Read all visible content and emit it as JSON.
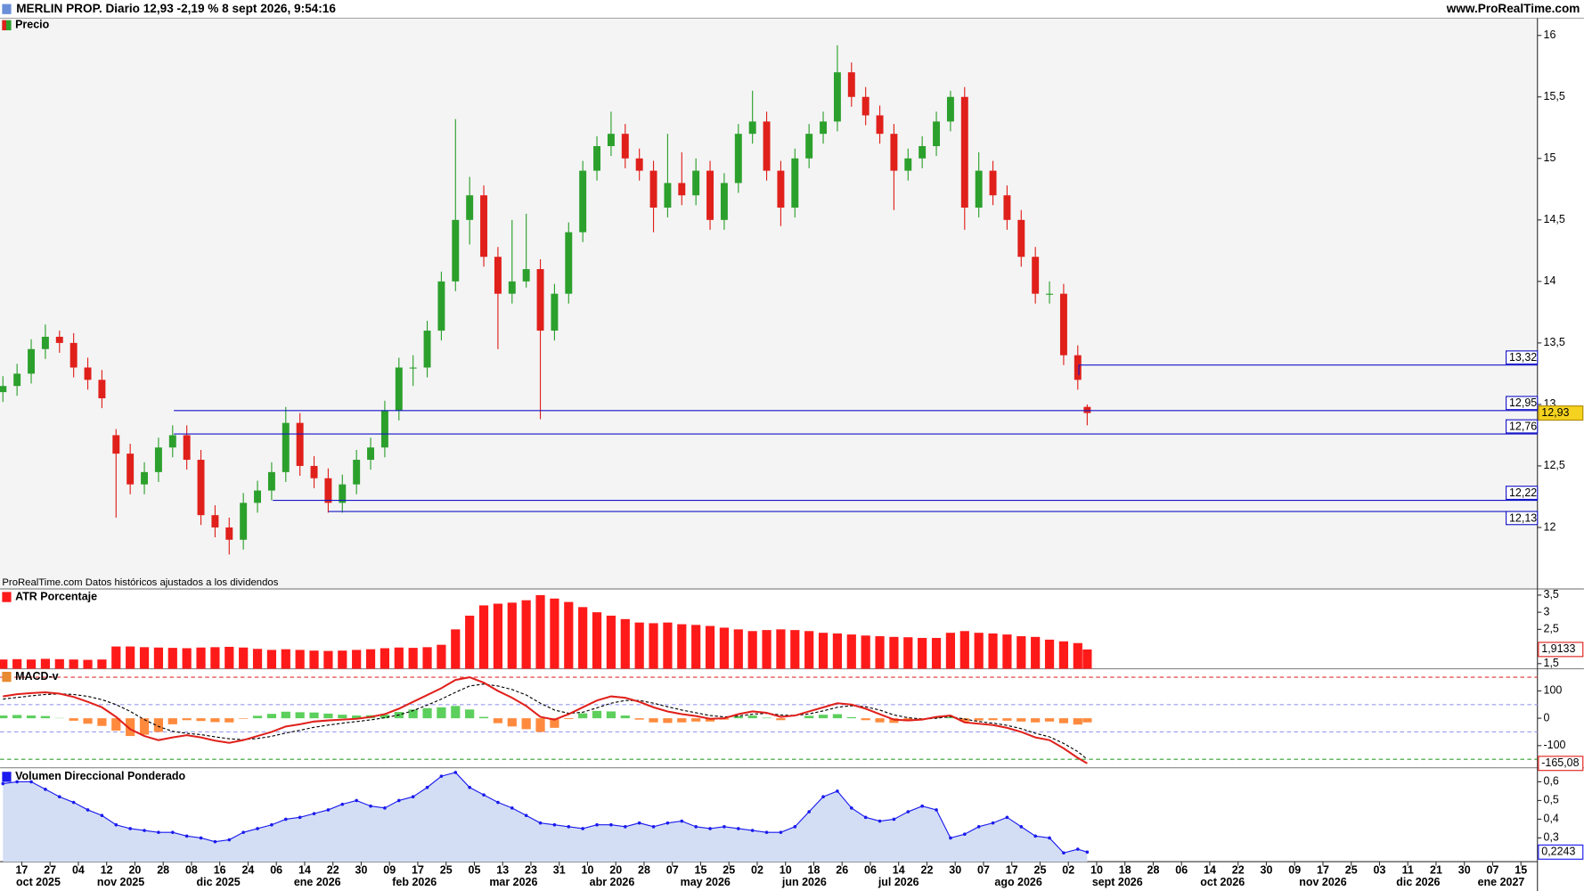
{
  "header": {
    "title": "MERLIN PROP. Diario 12,93 -2,19 % 8 sept 2026, 9:54:16",
    "site": "www.ProRealTime.com"
  },
  "chart_data": [
    {
      "type": "candlestick",
      "title": "Precio",
      "note": "ProRealTime.com Datos históricos ajustados a los dividendos",
      "up_color": "#2ca02c",
      "down_color": "#e0201b",
      "x": [
        0,
        3,
        6,
        9,
        12,
        15,
        18,
        21,
        24,
        27,
        30,
        33,
        36,
        39,
        42,
        45,
        48,
        51,
        54,
        57,
        60,
        63,
        66,
        69,
        72,
        75,
        78,
        81,
        84,
        87,
        90,
        93,
        96,
        99,
        102,
        105,
        108,
        111,
        114,
        117,
        120,
        123,
        126,
        129,
        132,
        135,
        138,
        141,
        144,
        147,
        150,
        153,
        156,
        159,
        162,
        165,
        168,
        171,
        174,
        177,
        180,
        183,
        186,
        189,
        192,
        195,
        198,
        201,
        204,
        207,
        210,
        213,
        216,
        219,
        222,
        225,
        228,
        230
      ],
      "open": [
        13.1,
        13.15,
        13.25,
        13.45,
        13.55,
        13.5,
        13.3,
        13.2,
        12.75,
        12.6,
        12.35,
        12.45,
        12.65,
        12.75,
        12.55,
        12.1,
        12.0,
        11.9,
        12.2,
        12.3,
        12.45,
        12.85,
        12.5,
        12.4,
        12.2,
        12.35,
        12.55,
        12.65,
        12.95,
        13.3,
        13.3,
        13.6,
        14.0,
        14.5,
        14.7,
        14.2,
        13.9,
        14.0,
        14.1,
        13.6,
        13.9,
        14.4,
        14.9,
        15.1,
        15.2,
        15.0,
        14.9,
        14.6,
        14.8,
        14.7,
        14.9,
        14.5,
        14.8,
        15.2,
        15.3,
        14.9,
        14.6,
        15.0,
        15.2,
        15.3,
        15.7,
        15.5,
        15.35,
        15.2,
        14.9,
        15.0,
        15.1,
        15.3,
        15.5,
        14.6,
        14.9,
        14.7,
        14.5,
        14.2,
        13.9,
        13.9,
        13.4,
        12.98
      ],
      "high": [
        13.23,
        13.33,
        13.53,
        13.65,
        13.6,
        13.58,
        13.38,
        13.28,
        12.8,
        12.68,
        12.53,
        12.73,
        12.83,
        12.83,
        12.63,
        12.18,
        12.08,
        12.28,
        12.38,
        12.53,
        12.98,
        12.93,
        12.58,
        12.48,
        12.43,
        12.63,
        12.73,
        13.03,
        13.38,
        13.4,
        13.68,
        14.08,
        15.32,
        14.85,
        14.78,
        14.28,
        14.5,
        14.55,
        14.18,
        13.98,
        14.48,
        14.98,
        15.18,
        15.38,
        15.28,
        15.08,
        14.98,
        15.2,
        15.05,
        15.0,
        14.98,
        14.88,
        15.28,
        15.55,
        15.38,
        14.98,
        15.08,
        15.28,
        15.38,
        15.92,
        15.78,
        15.58,
        15.43,
        15.28,
        15.08,
        15.18,
        15.38,
        15.55,
        15.58,
        15.05,
        14.98,
        14.78,
        14.58,
        14.28,
        14.0,
        13.98,
        13.48,
        13.0
      ],
      "low": [
        13.02,
        13.07,
        13.17,
        13.37,
        13.42,
        13.22,
        13.12,
        12.97,
        12.08,
        12.27,
        12.27,
        12.37,
        12.57,
        12.47,
        12.02,
        11.92,
        11.78,
        11.82,
        12.12,
        12.22,
        12.37,
        12.42,
        12.32,
        12.12,
        12.12,
        12.27,
        12.47,
        12.57,
        12.87,
        13.15,
        13.22,
        13.52,
        13.92,
        14.3,
        14.12,
        13.45,
        13.82,
        13.95,
        12.88,
        13.52,
        13.82,
        14.32,
        14.82,
        15.02,
        14.92,
        14.82,
        14.4,
        14.52,
        14.62,
        14.62,
        14.42,
        14.42,
        14.72,
        15.12,
        14.82,
        14.45,
        14.52,
        14.92,
        15.12,
        15.22,
        15.42,
        15.27,
        15.12,
        14.58,
        14.82,
        14.92,
        15.02,
        15.22,
        14.42,
        14.52,
        14.62,
        14.42,
        14.12,
        13.82,
        13.82,
        13.32,
        13.12,
        12.83
      ],
      "close": [
        13.15,
        13.25,
        13.45,
        13.55,
        13.5,
        13.3,
        13.2,
        13.05,
        12.6,
        12.35,
        12.45,
        12.65,
        12.75,
        12.55,
        12.1,
        12.0,
        11.9,
        12.2,
        12.3,
        12.45,
        12.85,
        12.5,
        12.4,
        12.2,
        12.35,
        12.55,
        12.65,
        12.95,
        13.3,
        13.3,
        13.6,
        14.0,
        14.5,
        14.7,
        14.2,
        13.9,
        14.0,
        14.1,
        13.6,
        13.9,
        14.4,
        14.9,
        15.1,
        15.2,
        15.0,
        14.9,
        14.6,
        14.8,
        14.7,
        14.9,
        14.5,
        14.8,
        15.2,
        15.3,
        14.9,
        14.6,
        15.0,
        15.2,
        15.3,
        15.7,
        15.5,
        15.35,
        15.2,
        14.9,
        15.0,
        15.1,
        15.3,
        15.5,
        14.6,
        14.9,
        14.7,
        14.5,
        14.2,
        13.9,
        13.9,
        13.4,
        13.2,
        12.93
      ],
      "ylim": [
        11.5,
        16.14
      ],
      "yticks": [
        12,
        {
          "value": 12.5,
          "label": "12,5"
        },
        13,
        {
          "value": 13.5,
          "label": "13,5"
        },
        14,
        {
          "value": 14.5,
          "label": "14,5"
        },
        15,
        {
          "value": 15.5,
          "label": "15,5"
        },
        16
      ],
      "levels": [
        {
          "value": 13.32,
          "label": "13,32"
        },
        {
          "value": 12.95,
          "label": "12,95"
        },
        {
          "value": 12.76,
          "label": "12,76"
        },
        {
          "value": 12.22,
          "label": "12,22"
        },
        {
          "value": 12.13,
          "label": "12,13"
        }
      ],
      "level_color": "#1515c8",
      "current": {
        "value": 12.93,
        "label": "12,93"
      },
      "current_fill": "#f5d21f",
      "current_border": "#b08a00"
    },
    {
      "type": "bar",
      "title": "ATR Porcentaje",
      "color": "#ff1a1a",
      "values": [
        1.62,
        1.63,
        1.62,
        1.64,
        1.63,
        1.62,
        1.61,
        1.62,
        2.0,
        2.0,
        1.98,
        1.97,
        1.96,
        1.95,
        1.97,
        1.98,
        1.99,
        1.97,
        1.93,
        1.9,
        1.92,
        1.9,
        1.88,
        1.87,
        1.88,
        1.9,
        1.92,
        1.95,
        1.97,
        1.96,
        1.98,
        2.05,
        2.5,
        2.9,
        3.2,
        3.25,
        3.28,
        3.35,
        3.5,
        3.4,
        3.3,
        3.15,
        3.0,
        2.9,
        2.8,
        2.7,
        2.68,
        2.7,
        2.65,
        2.63,
        2.6,
        2.55,
        2.5,
        2.45,
        2.48,
        2.5,
        2.48,
        2.45,
        2.4,
        2.38,
        2.35,
        2.32,
        2.3,
        2.28,
        2.27,
        2.25,
        2.25,
        2.4,
        2.45,
        2.4,
        2.38,
        2.35,
        2.3,
        2.28,
        2.2,
        2.15,
        2.1,
        1.9133
      ],
      "ylim": [
        1.35,
        3.68
      ],
      "yticks": [
        {
          "value": 1.5,
          "label": "1,5"
        },
        {
          "value": 2.5,
          "label": "2,5"
        },
        3,
        {
          "value": 3.5,
          "label": "3,5"
        }
      ],
      "current": {
        "value": 1.9133,
        "label": "1,9133"
      },
      "current_fill": "#ffffff",
      "current_border": "#e0201b"
    },
    {
      "type": "macd",
      "title": "MACD-v",
      "series": [
        {
          "name": "MACD-v",
          "color": "#e0201b",
          "values": [
            80,
            88,
            92,
            95,
            90,
            78,
            60,
            40,
            5,
            -40,
            -65,
            -80,
            -70,
            -62,
            -70,
            -82,
            -90,
            -80,
            -65,
            -50,
            -30,
            -22,
            -12,
            -8,
            -5,
            -2,
            5,
            15,
            35,
            60,
            85,
            110,
            140,
            150,
            130,
            100,
            75,
            45,
            5,
            -5,
            15,
            40,
            65,
            80,
            75,
            60,
            40,
            25,
            15,
            8,
            -2,
            0,
            15,
            25,
            20,
            5,
            10,
            25,
            40,
            55,
            50,
            35,
            15,
            -5,
            -8,
            -5,
            5,
            10,
            -15,
            -20,
            -25,
            -35,
            -50,
            -70,
            -80,
            -110,
            -145,
            -165.08
          ]
        },
        {
          "name": "Señal",
          "color": "#000000",
          "values": [
            70,
            76,
            82,
            87,
            89,
            87,
            80,
            68,
            50,
            25,
            -5,
            -30,
            -48,
            -55,
            -60,
            -68,
            -75,
            -78,
            -74,
            -66,
            -54,
            -44,
            -33,
            -25,
            -18,
            -12,
            -6,
            2,
            12,
            28,
            48,
            70,
            95,
            118,
            125,
            118,
            105,
            85,
            55,
            30,
            18,
            22,
            38,
            55,
            65,
            65,
            55,
            42,
            30,
            20,
            10,
            5,
            8,
            15,
            18,
            12,
            10,
            16,
            27,
            40,
            46,
            42,
            30,
            12,
            2,
            -3,
            0,
            6,
            -3,
            -12,
            -18,
            -26,
            -38,
            -55,
            -68,
            -92,
            -122,
            -150
          ]
        }
      ],
      "histogram": [
        10,
        12,
        10,
        8,
        1,
        -9,
        -20,
        -28,
        -45,
        -65,
        -60,
        -50,
        -22,
        -7,
        -10,
        -14,
        -15,
        -2,
        9,
        16,
        24,
        22,
        21,
        17,
        13,
        10,
        11,
        13,
        23,
        32,
        37,
        40,
        45,
        32,
        5,
        -18,
        -30,
        -40,
        -50,
        -35,
        -3,
        18,
        27,
        25,
        10,
        -5,
        -15,
        -17,
        -15,
        -12,
        -12,
        -5,
        7,
        10,
        2,
        -7,
        0,
        9,
        13,
        15,
        4,
        -7,
        -15,
        -17,
        -10,
        -2,
        5,
        4,
        -12,
        -8,
        -7,
        -9,
        -12,
        -15,
        -12,
        -18,
        -23,
        -15.08
      ],
      "hist_up_color": "#5ccf5c",
      "hist_down_color": "#ff8a3d",
      "ref_lines": [
        {
          "value": 150,
          "color": "#e03030"
        },
        {
          "value": 50,
          "color": "#9a9af0"
        },
        {
          "value": -50,
          "color": "#9a9af0"
        },
        {
          "value": -150,
          "color": "#30a030"
        }
      ],
      "ylim": [
        -181,
        181
      ],
      "yticks": [
        100,
        0,
        -100
      ],
      "current": {
        "value": -165.08,
        "label": "-165,08"
      },
      "current_fill": "#ffffff",
      "current_border": "#e0201b"
    },
    {
      "type": "area",
      "title": "Volumen Direccional Ponderado",
      "color": "#1a1aee",
      "fill": "#d3def5",
      "values": [
        0.59,
        0.6,
        0.6,
        0.56,
        0.52,
        0.49,
        0.45,
        0.42,
        0.37,
        0.35,
        0.34,
        0.33,
        0.33,
        0.31,
        0.3,
        0.28,
        0.29,
        0.33,
        0.35,
        0.37,
        0.4,
        0.41,
        0.43,
        0.45,
        0.48,
        0.5,
        0.47,
        0.46,
        0.5,
        0.52,
        0.57,
        0.63,
        0.65,
        0.57,
        0.53,
        0.49,
        0.46,
        0.42,
        0.38,
        0.37,
        0.36,
        0.35,
        0.37,
        0.37,
        0.36,
        0.38,
        0.36,
        0.38,
        0.39,
        0.36,
        0.35,
        0.36,
        0.35,
        0.34,
        0.33,
        0.33,
        0.36,
        0.44,
        0.52,
        0.55,
        0.46,
        0.41,
        0.39,
        0.4,
        0.44,
        0.47,
        0.45,
        0.3,
        0.32,
        0.36,
        0.38,
        0.41,
        0.36,
        0.31,
        0.3,
        0.22,
        0.24,
        0.2243
      ],
      "ylim": [
        0.173,
        0.675
      ],
      "yticks": [
        {
          "value": 0.3,
          "label": "0,3"
        },
        {
          "value": 0.4,
          "label": "0,4"
        },
        {
          "value": 0.5,
          "label": "0,5"
        },
        {
          "value": 0.6,
          "label": "0,6"
        }
      ],
      "current": {
        "value": 0.2243,
        "label": "0,2243"
      },
      "current_fill": "#ffffff",
      "current_border": "#1a1aee",
      "xlim": [
        -0.6,
        325.5
      ],
      "xticks": [
        {
          "value": 4,
          "label": "17"
        },
        {
          "value": 10,
          "label": "27"
        },
        {
          "value": 16,
          "label": "04"
        },
        {
          "value": 22,
          "label": "12"
        },
        {
          "value": 28,
          "label": "20"
        },
        {
          "value": 34,
          "label": "28"
        },
        {
          "value": 40,
          "label": "08"
        },
        {
          "value": 46,
          "label": "16"
        },
        {
          "value": 52,
          "label": "24"
        },
        {
          "value": 58,
          "label": "06"
        },
        {
          "value": 64,
          "label": "14"
        },
        {
          "value": 70,
          "label": "22"
        },
        {
          "value": 76,
          "label": "30"
        },
        {
          "value": 82,
          "label": "09"
        },
        {
          "value": 88,
          "label": "17"
        },
        {
          "value": 94,
          "label": "25"
        },
        {
          "value": 100,
          "label": "05"
        },
        {
          "value": 106,
          "label": "13"
        },
        {
          "value": 112,
          "label": "23"
        },
        {
          "value": 118,
          "label": "31"
        },
        {
          "value": 124,
          "label": "10"
        },
        {
          "value": 130,
          "label": "20"
        },
        {
          "value": 136,
          "label": "28"
        },
        {
          "value": 142,
          "label": "07"
        },
        {
          "value": 148,
          "label": "15"
        },
        {
          "value": 154,
          "label": "25"
        },
        {
          "value": 160,
          "label": "02"
        },
        {
          "value": 166,
          "label": "10"
        },
        {
          "value": 172,
          "label": "18"
        },
        {
          "value": 178,
          "label": "26"
        },
        {
          "value": 184,
          "label": "06"
        },
        {
          "value": 190,
          "label": "14"
        },
        {
          "value": 196,
          "label": "22"
        },
        {
          "value": 202,
          "label": "30"
        },
        {
          "value": 208,
          "label": "07"
        },
        {
          "value": 214,
          "label": "17"
        },
        {
          "value": 220,
          "label": "25"
        },
        {
          "value": 226,
          "label": "02"
        },
        {
          "value": 232,
          "label": "10"
        },
        {
          "value": 238,
          "label": "18"
        },
        {
          "value": 244,
          "label": "28"
        },
        {
          "value": 250,
          "label": "06"
        },
        {
          "value": 256,
          "label": "14"
        },
        {
          "value": 262,
          "label": "22"
        },
        {
          "value": 268,
          "label": "30"
        },
        {
          "value": 274,
          "label": "09"
        },
        {
          "value": 280,
          "label": "17"
        },
        {
          "value": 286,
          "label": "25"
        },
        {
          "value": 292,
          "label": "03"
        },
        {
          "value": 298,
          "label": "11"
        },
        {
          "value": 304,
          "label": "21"
        },
        {
          "value": 310,
          "label": "30"
        },
        {
          "value": 316,
          "label": "07"
        },
        {
          "value": 322,
          "label": "15"
        }
      ],
      "xmonths": [
        {
          "value": 7.5,
          "label": "oct 2025"
        },
        {
          "value": 25,
          "label": "nov 2025"
        },
        {
          "value": 45.7,
          "label": "dic 2025"
        },
        {
          "value": 66.7,
          "label": "ene 2026"
        },
        {
          "value": 87.3,
          "label": "feb 2026"
        },
        {
          "value": 108.3,
          "label": "mar 2026"
        },
        {
          "value": 129.2,
          "label": "abr 2026"
        },
        {
          "value": 149,
          "label": "may 2026"
        },
        {
          "value": 170,
          "label": "jun 2026"
        },
        {
          "value": 190,
          "label": "jul 2026"
        },
        {
          "value": 215.4,
          "label": "ago 2026"
        },
        {
          "value": 236.4,
          "label": "sept 2026"
        },
        {
          "value": 258.7,
          "label": "oct 2026"
        },
        {
          "value": 280,
          "label": "nov 2026"
        },
        {
          "value": 300.2,
          "label": "dic 2026"
        },
        {
          "value": 317.8,
          "label": "ene 2027"
        }
      ]
    }
  ]
}
